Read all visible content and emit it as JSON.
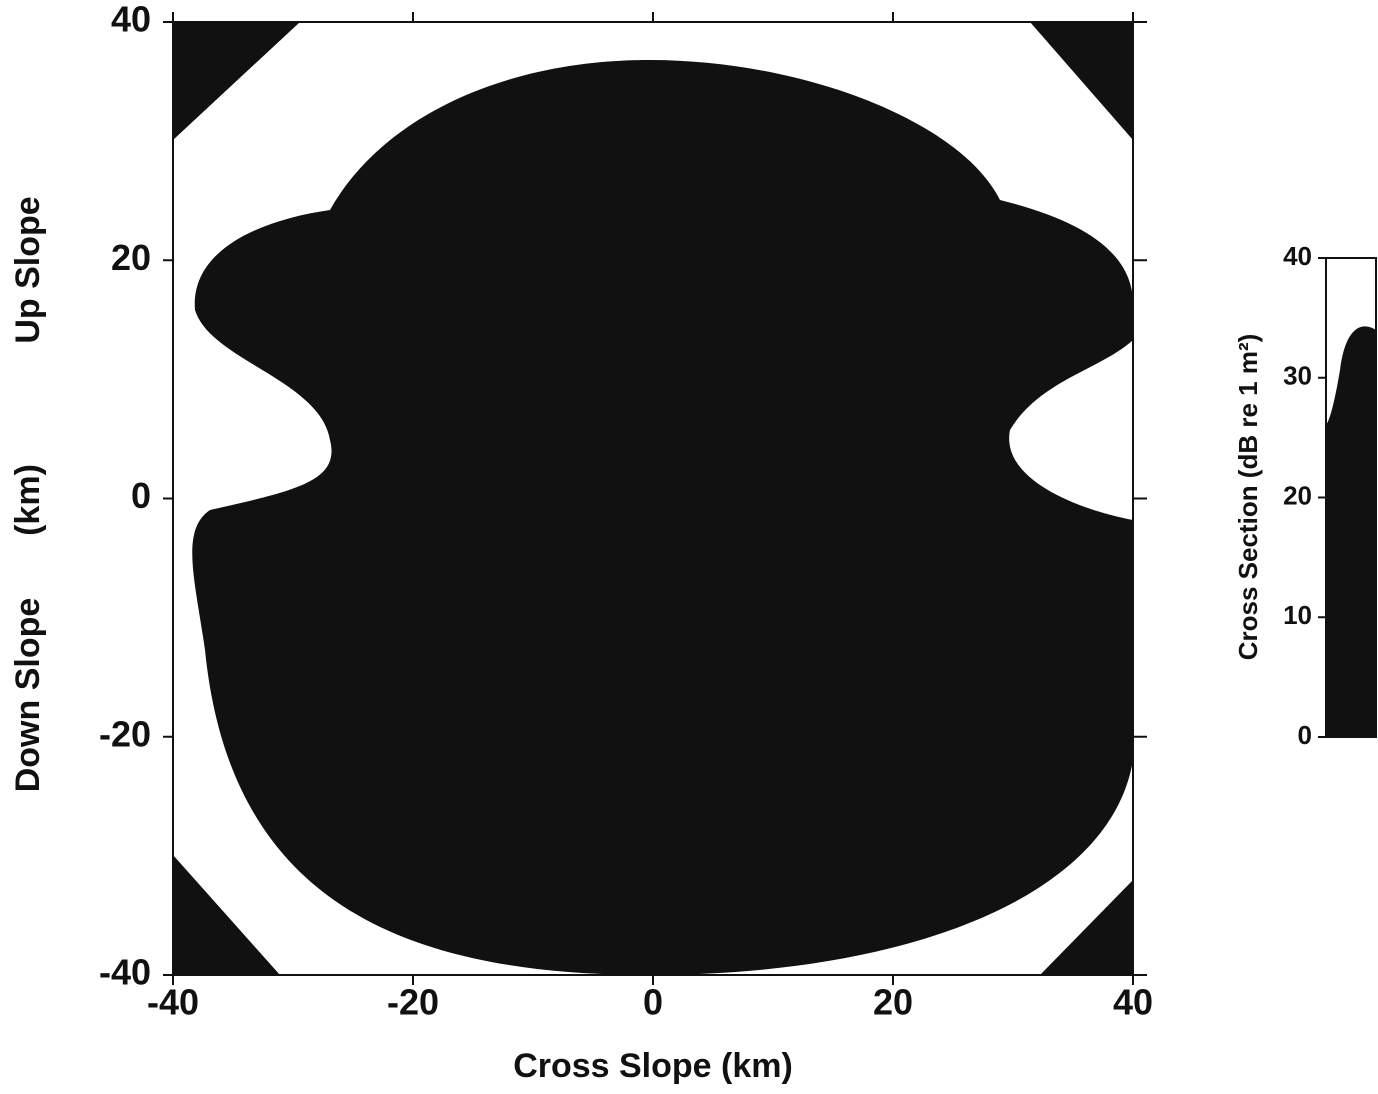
{
  "chart_data": {
    "type": "image",
    "x_label": "Cross Slope  (km)",
    "y_label_parts": [
      "Up Slope",
      "(km)",
      "Down Slope"
    ],
    "xlim": [
      -40,
      40
    ],
    "xticks": [
      -40,
      -20,
      0,
      20,
      40
    ],
    "ylim": [
      -40,
      40
    ],
    "yticks": [
      -40,
      -20,
      0,
      20,
      40
    ],
    "colorbar": {
      "label": "Cross Section  (dB re 1 m²)",
      "lim": [
        0,
        40
      ],
      "ticks": [
        0,
        10,
        20,
        30,
        40
      ]
    }
  }
}
